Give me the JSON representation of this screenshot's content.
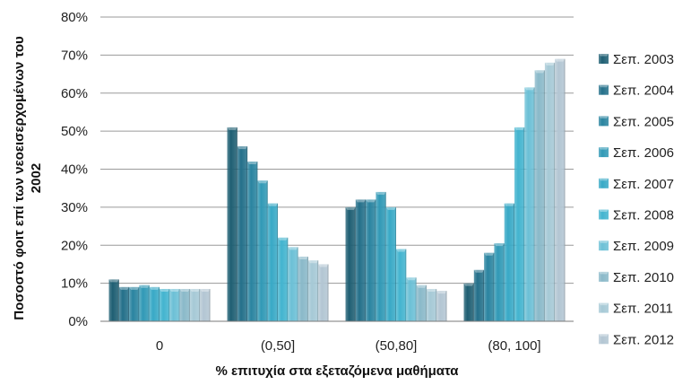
{
  "chart_data": {
    "type": "bar",
    "title": "",
    "xlabel": "% επιτυχία στα εξεταζόμενα μαθήματα",
    "ylabel_lines": [
      "Ποσοστό  φοιτ επί των νεοεισερχομένων του",
      "2002"
    ],
    "ylim": [
      0,
      80
    ],
    "yticks": [
      0,
      10,
      20,
      30,
      40,
      50,
      60,
      70,
      80
    ],
    "ytick_suffix": "%",
    "grid": true,
    "legend_position": "right",
    "categories": [
      "0",
      "(0,50]",
      "(50,80]",
      "(80, 100]"
    ],
    "series": [
      {
        "name": "Σεπ. 2003",
        "color": "#1f5f73",
        "values": [
          11,
          51,
          30,
          10
        ]
      },
      {
        "name": "Σεπ. 2004",
        "color": "#24708a",
        "values": [
          9,
          46,
          32,
          13.5
        ]
      },
      {
        "name": "Σεπ. 2005",
        "color": "#2a84a0",
        "values": [
          9,
          42,
          32,
          18
        ]
      },
      {
        "name": "Σεπ. 2006",
        "color": "#3199b6",
        "values": [
          9.5,
          37,
          34,
          20.5
        ]
      },
      {
        "name": "Σεπ. 2007",
        "color": "#38a9c6",
        "values": [
          9,
          31,
          30,
          31
        ]
      },
      {
        "name": "Σεπ. 2008",
        "color": "#43b4cf",
        "values": [
          8.5,
          22,
          19,
          51
        ]
      },
      {
        "name": "Σεπ. 2009",
        "color": "#6cc0d6",
        "values": [
          8.5,
          19.5,
          11.5,
          61.5
        ]
      },
      {
        "name": "Σεπ. 2010",
        "color": "#8ab9c9",
        "values": [
          8.5,
          17,
          9.5,
          66
        ]
      },
      {
        "name": "Σεπ. 2011",
        "color": "#a6c9d6",
        "values": [
          8.5,
          16,
          8.5,
          68
        ]
      },
      {
        "name": "Σεπ. 2012",
        "color": "#b3c6d3",
        "values": [
          8.5,
          15,
          8,
          69
        ]
      }
    ]
  }
}
